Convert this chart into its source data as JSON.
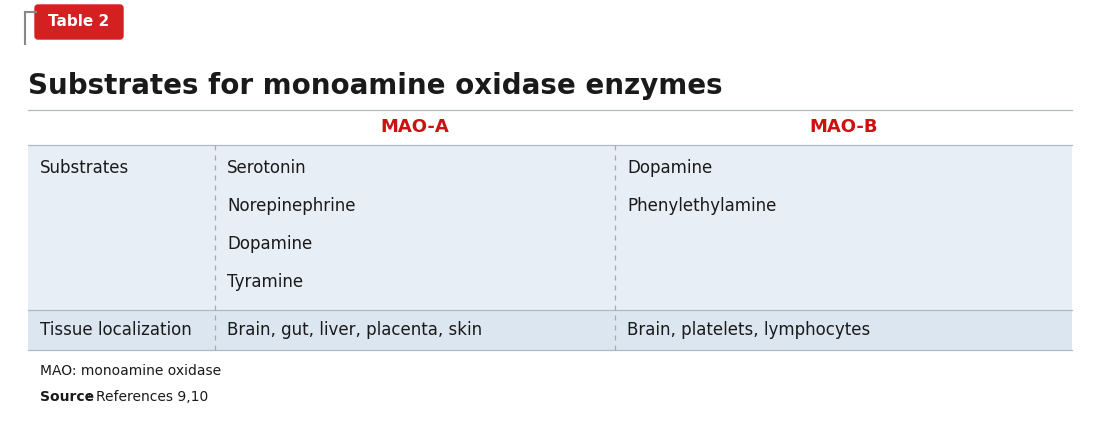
{
  "title": "Substrates for monoamine oxidase enzymes",
  "table_label": "Table 2",
  "table_label_bg": "#d42020",
  "table_label_color": "#ffffff",
  "col_headers": [
    "MAO-A",
    "MAO-B"
  ],
  "col_header_color": "#cc1111",
  "row1_label": "Substrates",
  "row1_col1": [
    "Serotonin",
    "Norepinephrine",
    "Dopamine",
    "Tyramine"
  ],
  "row1_col2": [
    "Dopamine",
    "Phenylethylamine"
  ],
  "row2_label": "Tissue localization",
  "row2_col1": "Brain, gut, liver, placenta, skin",
  "row2_col2": "Brain, platelets, lymphocytes",
  "footnote1": "MAO: monoamine oxidase",
  "footnote2_bold": "Source",
  "footnote2_normal": ": References 9,10",
  "bg_color": "#ffffff",
  "table_bg_light": "#e8eef6",
  "table_bg_dark": "#dce6f0",
  "border_color": "#b0b8c4",
  "dashed_color": "#aaaaaa",
  "text_color": "#1a1a1a",
  "figsize": [
    11.0,
    4.22
  ],
  "dpi": 100
}
